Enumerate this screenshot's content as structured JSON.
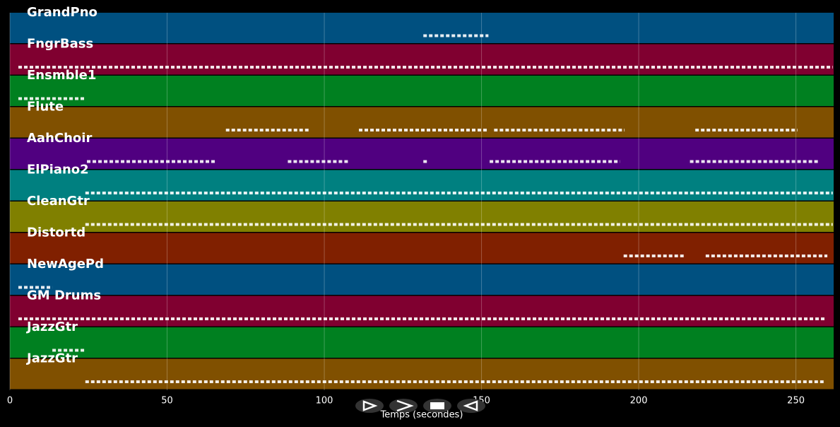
{
  "chart_data": {
    "type": "tracks",
    "xlabel": "Temps (secondes)",
    "xlim": [
      0,
      262
    ],
    "xticks": [
      0,
      50,
      100,
      150,
      200,
      250
    ],
    "grid": true,
    "tracks": [
      {
        "name": "GrandPno",
        "color": "#005080",
        "spans": [
          [
            131.5,
            152.2
          ]
        ]
      },
      {
        "name": "FngrBass",
        "color": "#800030",
        "spans": [
          [
            2.7,
            261.7
          ]
        ]
      },
      {
        "name": "Ensmble1",
        "color": "#008020",
        "spans": [
          [
            2.7,
            24
          ]
        ]
      },
      {
        "name": "Flute",
        "color": "#805000",
        "spans": [
          [
            68.7,
            95
          ],
          [
            111,
            151.7
          ],
          [
            154,
            195.5
          ],
          [
            218,
            250.5
          ]
        ]
      },
      {
        "name": "AahChoir",
        "color": "#500080",
        "spans": [
          [
            24.5,
            65.5
          ],
          [
            88.4,
            108
          ],
          [
            131.5,
            133.3
          ],
          [
            152.6,
            194
          ],
          [
            216.3,
            257.6
          ]
        ]
      },
      {
        "name": "ElPiano2",
        "color": "#008080",
        "spans": [
          [
            24,
            261.7
          ]
        ]
      },
      {
        "name": "CleanGtr",
        "color": "#808000",
        "spans": [
          [
            24,
            261.7
          ]
        ]
      },
      {
        "name": "Distortd",
        "color": "#802000",
        "spans": [
          [
            195.2,
            214.5
          ],
          [
            221.3,
            260
          ]
        ]
      },
      {
        "name": "NewAgePd",
        "color": "#005080",
        "spans": [
          [
            2.7,
            13.5
          ]
        ]
      },
      {
        "name": "GM Drums",
        "color": "#800030",
        "spans": [
          [
            2.7,
            259.4
          ]
        ]
      },
      {
        "name": "JazzGtr",
        "color": "#008020",
        "spans": [
          [
            13.5,
            24
          ]
        ]
      },
      {
        "name": "JazzGtr",
        "color": "#805000",
        "spans": [
          [
            24,
            259.4
          ]
        ]
      }
    ]
  }
}
